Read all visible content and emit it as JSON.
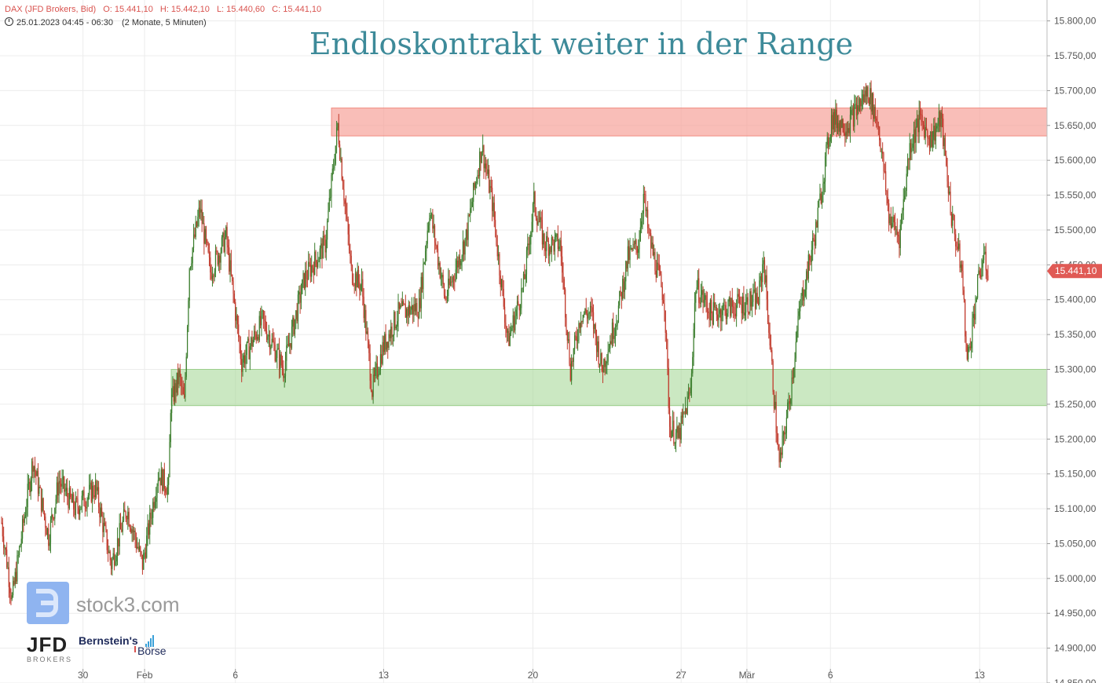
{
  "header": {
    "instrument": "DAX (JFD Brokers, Bid)",
    "open": "O: 15.441,10",
    "high": "H: 15.442,10",
    "low": "L: 15.440,60",
    "close": "C: 15.441,10",
    "datetime": "25.01.2023 04:45 - 06:30",
    "range": "(2 Monate, 5 Minuten)"
  },
  "logos": {
    "stock3": "stock3.com",
    "jfd": "JFD",
    "jfd_sub": "BROKERS",
    "bernstein": "Bernstein's",
    "boerse": "Börse"
  },
  "colors": {
    "resistance_zone": "#f7a39a",
    "support_zone": "#a9d99a",
    "candle_down": "#c0392b",
    "candle_up": "#3a7d2c",
    "price_tag": "#e05a55",
    "title": "#3d8a99"
  },
  "chart_data": {
    "type": "candlestick",
    "title": "Endloskontrakt weiter in der Range",
    "ylim": [
      14850,
      15830
    ],
    "y_ticks": [
      15800,
      15750,
      15700,
      15650,
      15600,
      15550,
      15500,
      15450,
      15400,
      15350,
      15300,
      15250,
      15200,
      15150,
      15100,
      15050,
      15000,
      14950,
      14900,
      14850
    ],
    "y_tick_labels": [
      "15.800,00",
      "15.750,00",
      "15.700,00",
      "15.650,00",
      "15.600,00",
      "15.550,00",
      "15.500,00",
      "15.450,00",
      "15.400,00",
      "15.350,00",
      "15.300,00",
      "15.250,00",
      "15.200,00",
      "15.150,00",
      "15.100,00",
      "15.050,00",
      "15.000,00",
      "14.950,00",
      "14.900,00",
      "14.850,00"
    ],
    "x_ticks": [
      "30",
      "Feb",
      "6",
      "13",
      "20",
      "27",
      "Mär",
      "6",
      "13"
    ],
    "grid": true,
    "resistance_zone": [
      15635,
      15675
    ],
    "support_zone": [
      15248,
      15300
    ],
    "last_price": 15441.1,
    "last_price_label": "15.441,10",
    "path_index_range": [
      0,
      1000
    ],
    "x_tick_index": [
      78,
      137,
      224,
      366,
      509,
      651,
      714,
      794,
      937
    ],
    "path": [
      [
        0,
        15080
      ],
      [
        10,
        14970
      ],
      [
        30,
        15170
      ],
      [
        45,
        15060
      ],
      [
        55,
        15140
      ],
      [
        70,
        15100
      ],
      [
        90,
        15130
      ],
      [
        105,
        15020
      ],
      [
        120,
        15100
      ],
      [
        135,
        15020
      ],
      [
        150,
        15150
      ],
      [
        160,
        15130
      ],
      [
        162,
        15250
      ],
      [
        170,
        15290
      ],
      [
        175,
        15250
      ],
      [
        180,
        15450
      ],
      [
        190,
        15530
      ],
      [
        200,
        15440
      ],
      [
        215,
        15490
      ],
      [
        230,
        15310
      ],
      [
        250,
        15370
      ],
      [
        270,
        15300
      ],
      [
        290,
        15430
      ],
      [
        310,
        15480
      ],
      [
        322,
        15650
      ],
      [
        335,
        15440
      ],
      [
        345,
        15420
      ],
      [
        355,
        15270
      ],
      [
        365,
        15330
      ],
      [
        380,
        15380
      ],
      [
        400,
        15390
      ],
      [
        410,
        15530
      ],
      [
        425,
        15400
      ],
      [
        445,
        15490
      ],
      [
        460,
        15620
      ],
      [
        470,
        15540
      ],
      [
        485,
        15340
      ],
      [
        500,
        15420
      ],
      [
        510,
        15540
      ],
      [
        520,
        15480
      ],
      [
        535,
        15480
      ],
      [
        545,
        15300
      ],
      [
        555,
        15380
      ],
      [
        565,
        15380
      ],
      [
        575,
        15300
      ],
      [
        590,
        15380
      ],
      [
        600,
        15460
      ],
      [
        610,
        15480
      ],
      [
        615,
        15550
      ],
      [
        620,
        15490
      ],
      [
        635,
        15400
      ],
      [
        640,
        15220
      ],
      [
        648,
        15200
      ],
      [
        660,
        15270
      ],
      [
        665,
        15420
      ],
      [
        680,
        15380
      ],
      [
        700,
        15390
      ],
      [
        725,
        15400
      ],
      [
        730,
        15460
      ],
      [
        745,
        15160
      ],
      [
        755,
        15260
      ],
      [
        765,
        15390
      ],
      [
        780,
        15500
      ],
      [
        795,
        15660
      ],
      [
        810,
        15650
      ],
      [
        830,
        15700
      ],
      [
        840,
        15650
      ],
      [
        850,
        15520
      ],
      [
        860,
        15490
      ],
      [
        870,
        15620
      ],
      [
        880,
        15660
      ],
      [
        890,
        15630
      ],
      [
        900,
        15660
      ],
      [
        910,
        15520
      ],
      [
        920,
        15440
      ],
      [
        925,
        15310
      ],
      [
        935,
        15420
      ],
      [
        940,
        15460
      ],
      [
        945,
        15441
      ]
    ]
  }
}
